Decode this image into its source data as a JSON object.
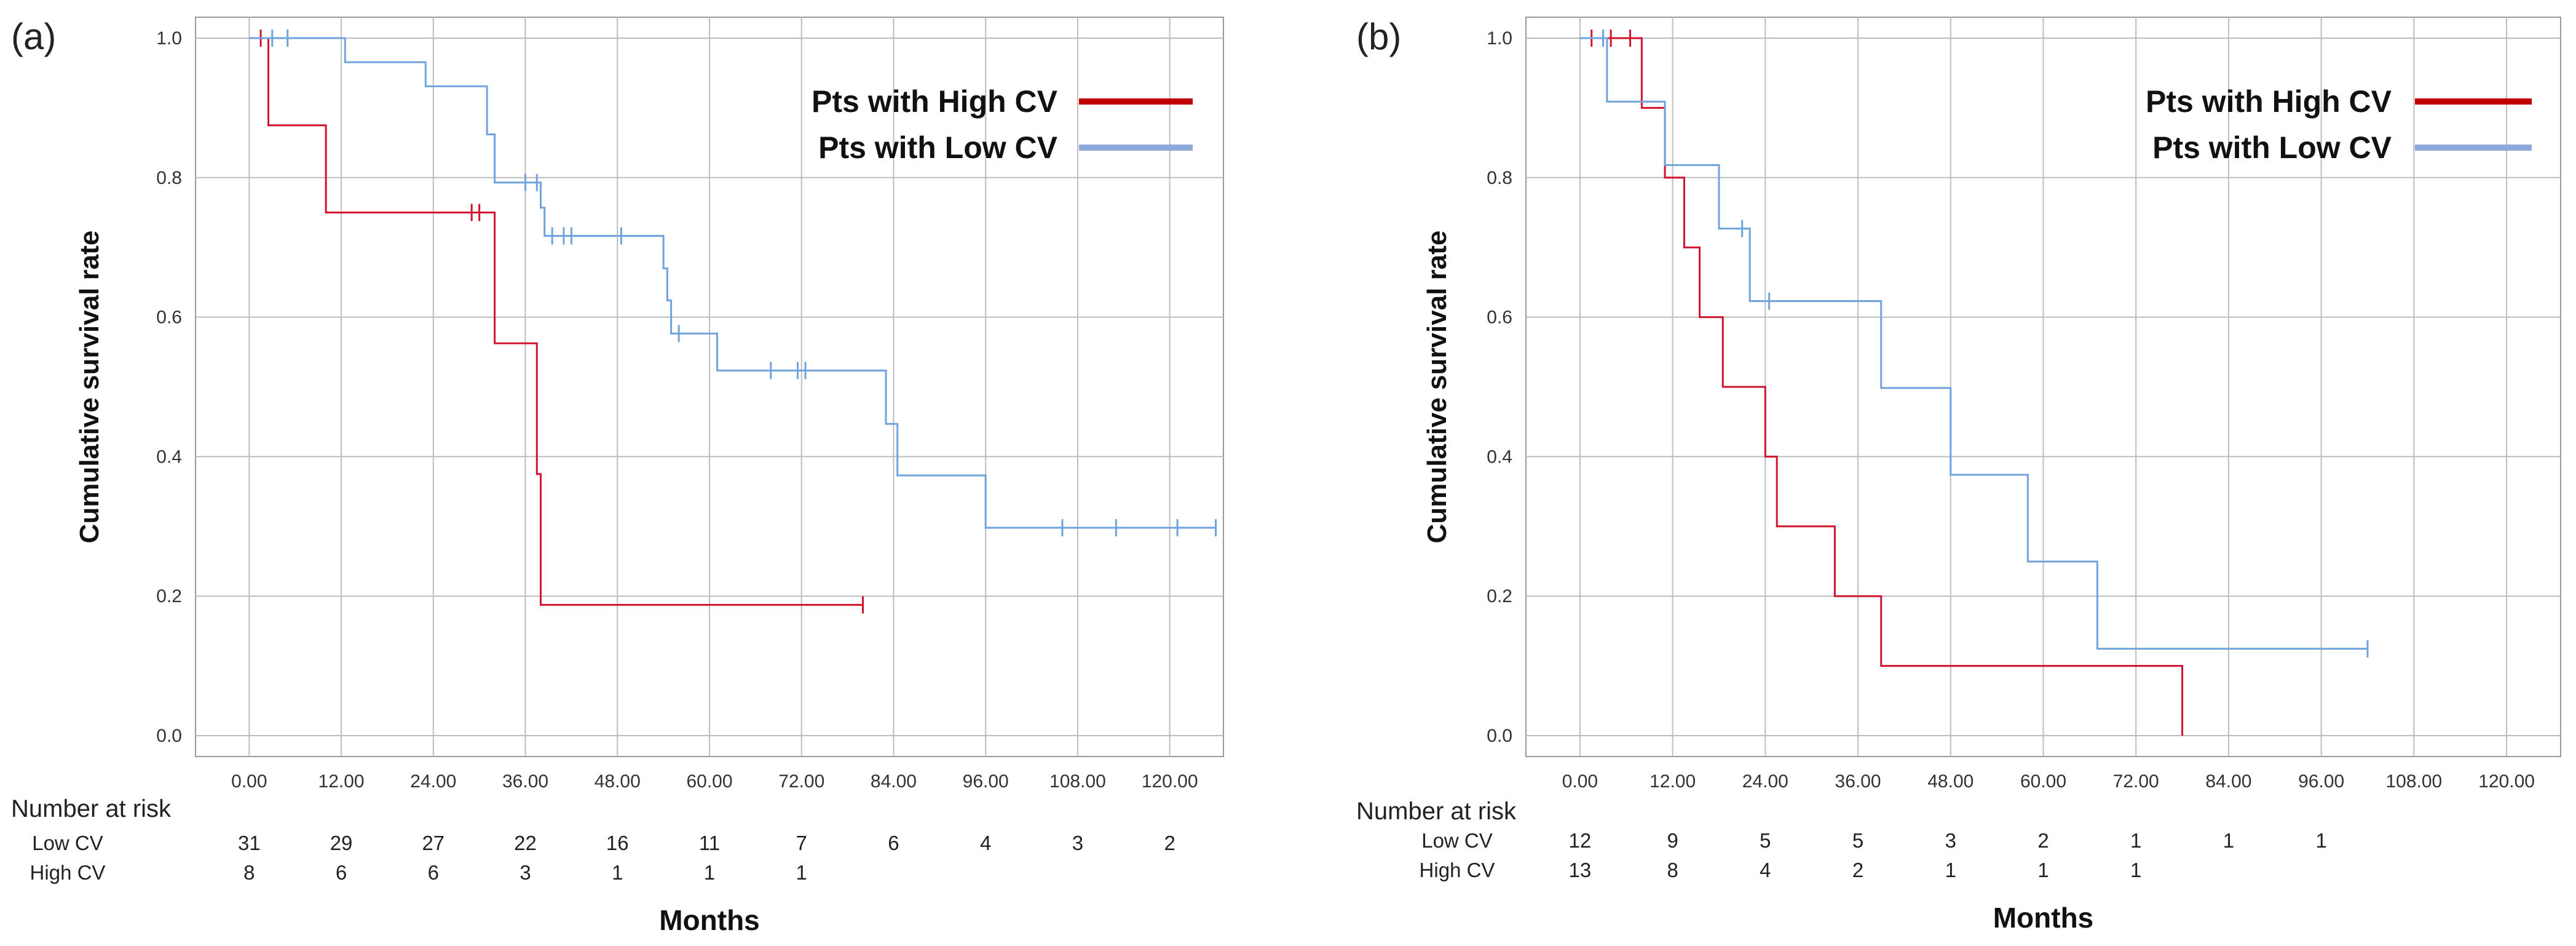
{
  "risk_header": "Number at risk",
  "xlabel": "Months",
  "ylabel": "Cumulative survival rate",
  "colors": {
    "high": "#d0142e",
    "low": "#6fa3dc",
    "grid": "#bdbdbd",
    "frame": "#9a9a9a",
    "legend_high": "#c00000",
    "legend_low": "#8eaadb"
  },
  "chart_data": [
    {
      "panel": "(a)",
      "type": "line",
      "step": true,
      "xlabel": "Months",
      "ylabel": "Cumulative survival rate",
      "ylim": [
        -0.03,
        1.03
      ],
      "xlim": [
        -7,
        127
      ],
      "xticks": [
        "0.00",
        "12.00",
        "24.00",
        "36.00",
        "48.00",
        "60.00",
        "72.00",
        "84.00",
        "96.00",
        "108.00",
        "120.00"
      ],
      "yticks": [
        "0.0",
        "0.2",
        "0.4",
        "0.6",
        "0.8",
        "1.0"
      ],
      "legend": {
        "position": "top-right",
        "entries": [
          "Pts with High CV",
          "Pts with Low  CV"
        ]
      },
      "series": [
        {
          "name": "Pts with High CV",
          "color": "#d0142e",
          "steps": [
            [
              0,
              1.0
            ],
            [
              2.5,
              0.875
            ],
            [
              10,
              0.75
            ],
            [
              32,
              0.5625
            ],
            [
              37.5,
              0.375
            ],
            [
              38,
              0.1875
            ],
            [
              80,
              0.1875
            ]
          ],
          "censored": [
            [
              1.5,
              1.0
            ],
            [
              29,
              0.75
            ],
            [
              30,
              0.75
            ],
            [
              80,
              0.1875
            ]
          ]
        },
        {
          "name": "Pts with Low  CV",
          "color": "#6fa3dc",
          "steps": [
            [
              0,
              1.0
            ],
            [
              12.5,
              0.9655
            ],
            [
              23,
              0.931
            ],
            [
              31,
              0.862
            ],
            [
              32,
              0.793
            ],
            [
              38,
              0.757
            ],
            [
              38.5,
              0.7165
            ],
            [
              54,
              0.67
            ],
            [
              54.5,
              0.624
            ],
            [
              55,
              0.5765
            ],
            [
              61,
              0.5235
            ],
            [
              83,
              0.447
            ],
            [
              84.5,
              0.373
            ],
            [
              96,
              0.298
            ],
            [
              126,
              0.298
            ]
          ],
          "censored": [
            [
              3,
              1.0
            ],
            [
              5,
              1.0
            ],
            [
              36,
              0.793
            ],
            [
              37.5,
              0.793
            ],
            [
              39.5,
              0.7165
            ],
            [
              41,
              0.7165
            ],
            [
              42,
              0.7165
            ],
            [
              48.5,
              0.7165
            ],
            [
              56,
              0.5765
            ],
            [
              68,
              0.5235
            ],
            [
              71.5,
              0.5235
            ],
            [
              72.5,
              0.5235
            ],
            [
              106,
              0.298
            ],
            [
              113,
              0.298
            ],
            [
              121,
              0.298
            ],
            [
              126,
              0.298
            ]
          ]
        }
      ],
      "number_at_risk": {
        "rows": [
          {
            "label": "Low CV",
            "values": [
              "31",
              "29",
              "27",
              "22",
              "16",
              "11",
              "7",
              "6",
              "4",
              "3",
              "2"
            ]
          },
          {
            "label": "High CV",
            "values": [
              "8",
              "6",
              "6",
              "3",
              "1",
              "1",
              "1"
            ]
          }
        ]
      }
    },
    {
      "panel": "(b)",
      "type": "line",
      "step": true,
      "xlabel": "Months",
      "ylabel": "Cumulative survival rate",
      "ylim": [
        -0.03,
        1.03
      ],
      "xlim": [
        -7,
        127
      ],
      "xticks": [
        "0.00",
        "12.00",
        "24.00",
        "36.00",
        "48.00",
        "60.00",
        "72.00",
        "84.00",
        "96.00",
        "108.00",
        "120.00"
      ],
      "yticks": [
        "0.0",
        "0.2",
        "0.4",
        "0.6",
        "0.8",
        "1.0"
      ],
      "legend": {
        "position": "top-right",
        "entries": [
          "Pts with High CV",
          "Pts with Low  CV"
        ]
      },
      "series": [
        {
          "name": "Pts with High CV",
          "color": "#d0142e",
          "steps": [
            [
              0,
              1.0
            ],
            [
              8,
              0.9
            ],
            [
              11,
              0.8
            ],
            [
              13.5,
              0.7
            ],
            [
              15.5,
              0.6
            ],
            [
              18.5,
              0.5
            ],
            [
              24,
              0.4
            ],
            [
              25.5,
              0.3
            ],
            [
              33,
              0.2
            ],
            [
              39,
              0.1
            ],
            [
              78,
              0.0
            ]
          ],
          "censored": [
            [
              1.5,
              1.0
            ],
            [
              4,
              1.0
            ],
            [
              6.5,
              1.0
            ]
          ]
        },
        {
          "name": "Pts with Low  CV",
          "color": "#6fa3dc",
          "steps": [
            [
              0,
              1.0
            ],
            [
              3.5,
              0.909
            ],
            [
              11,
              0.818
            ],
            [
              18,
              0.727
            ],
            [
              22,
              0.623
            ],
            [
              39,
              0.4985
            ],
            [
              48,
              0.374
            ],
            [
              58,
              0.2495
            ],
            [
              67,
              0.1245
            ],
            [
              102,
              0.1245
            ]
          ],
          "censored": [
            [
              3,
              1.0
            ],
            [
              21,
              0.727
            ],
            [
              24.5,
              0.623
            ],
            [
              102,
              0.1245
            ]
          ]
        }
      ],
      "number_at_risk": {
        "rows": [
          {
            "label": "Low CV",
            "values": [
              "12",
              "9",
              "5",
              "5",
              "3",
              "2",
              "1",
              "1",
              "1"
            ]
          },
          {
            "label": "High CV",
            "values": [
              "13",
              "8",
              "4",
              "2",
              "1",
              "1",
              "1"
            ]
          }
        ]
      }
    }
  ]
}
